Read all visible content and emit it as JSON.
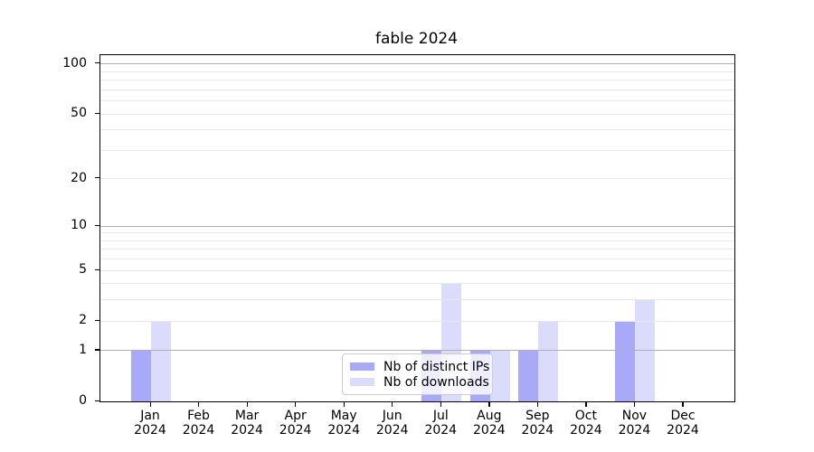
{
  "title": "fable 2024",
  "chart_data": {
    "type": "bar",
    "title": "fable 2024",
    "categories": [
      "Jan",
      "Feb",
      "Mar",
      "Apr",
      "May",
      "Jun",
      "Jul",
      "Aug",
      "Sep",
      "Oct",
      "Nov",
      "Dec"
    ],
    "year": "2024",
    "series": [
      {
        "name": "Nb of distinct IPs",
        "color": "#a9a9fa",
        "values": [
          1,
          0,
          0,
          0,
          0,
          0,
          1,
          1,
          1,
          0,
          2,
          0
        ]
      },
      {
        "name": "Nb of downloads",
        "color": "#dbdbfb",
        "values": [
          2,
          0,
          0,
          0,
          0,
          0,
          4,
          1,
          2,
          0,
          3,
          0
        ]
      }
    ],
    "xlabel": "",
    "ylabel": "",
    "y_scale": "log1p",
    "ylim": [
      0,
      113
    ],
    "y_ticks": [
      0,
      1,
      2,
      5,
      10,
      20,
      50,
      100
    ],
    "y_major_gridlines": [
      1,
      10,
      100
    ],
    "y_minor_gridlines": [
      2,
      3,
      4,
      5,
      6,
      7,
      8,
      9,
      20,
      30,
      40,
      50,
      60,
      70,
      80,
      90
    ],
    "grid": true,
    "grid_over_bars": true,
    "legend_position": "lower center",
    "colors": {
      "major_grid": "#b0b0b0",
      "minor_grid": "#e9e9e9",
      "axis": "#000000",
      "legend_border": "#cccccc",
      "legend_bg": "rgba(255,255,255,0.8)"
    }
  }
}
